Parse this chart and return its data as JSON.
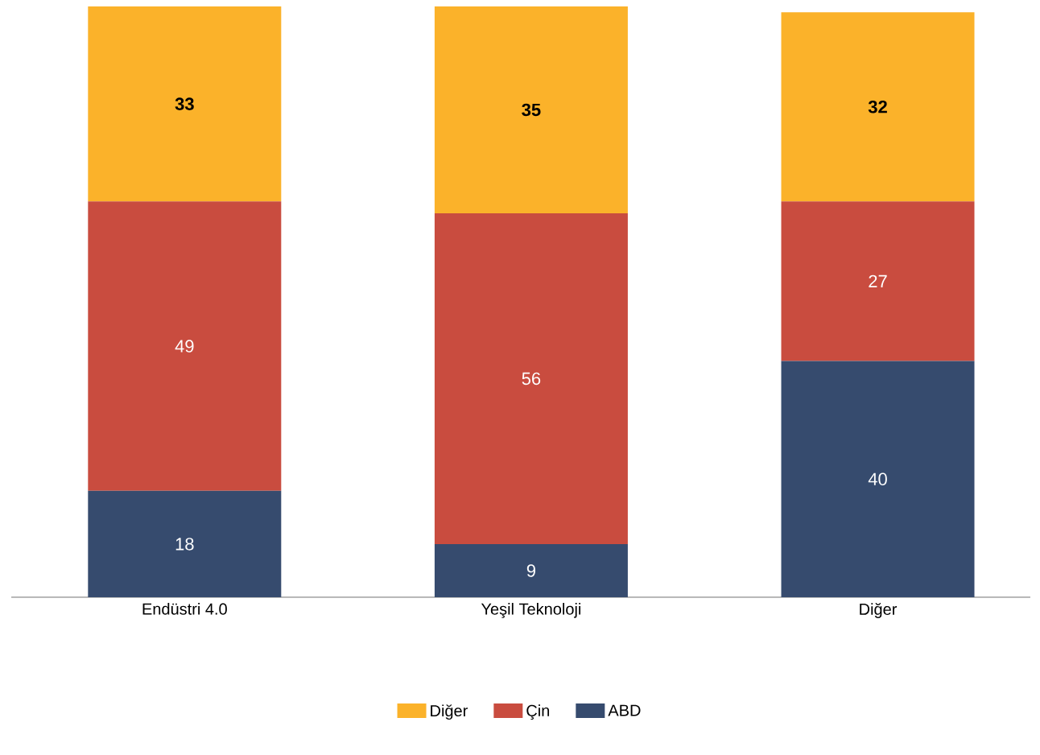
{
  "chart_data": {
    "type": "bar",
    "stacked": true,
    "data_labels": true,
    "legend": "bottom",
    "categories": [
      "Endüstri 4.0",
      "Yeşil Teknoloji",
      "Diğer"
    ],
    "series": [
      {
        "name": "ABD",
        "color": "#364b6e",
        "values": [
          18,
          9,
          40
        ]
      },
      {
        "name": "Çin",
        "color": "#c94c3f",
        "values": [
          49,
          56,
          27
        ]
      },
      {
        "name": "Diğer",
        "color": "#fbb22a",
        "values": [
          33,
          35,
          32
        ]
      }
    ]
  }
}
